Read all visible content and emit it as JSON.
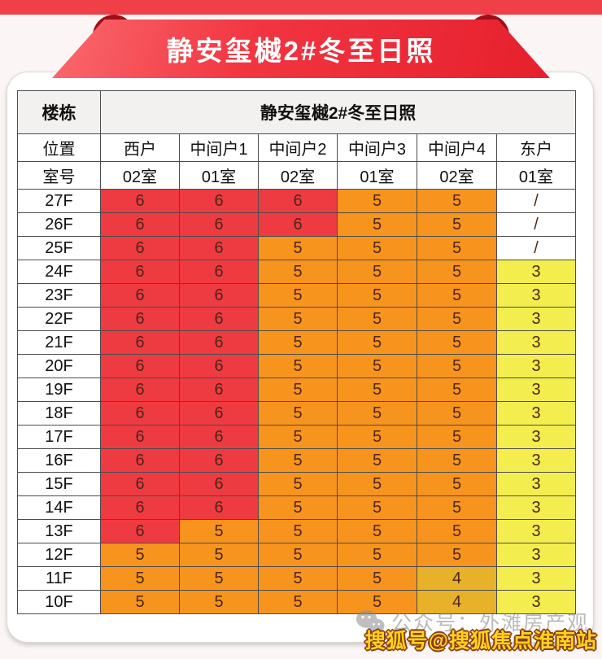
{
  "banner": {
    "title": "静安玺樾2#冬至日照"
  },
  "colors": {
    "red": "#ee3b41",
    "orange": "#f7941e",
    "amber": "#e8b12a",
    "yellow": "#f3ee4e",
    "white": "#ffffff",
    "banner_red": "#ee4046",
    "curl_dark_red": "#9c1016"
  },
  "table": {
    "corner_header": "楼栋",
    "span_header": "静安玺樾2#冬至日照",
    "position_label": "位置",
    "room_label": "室号",
    "positions": [
      "西户",
      "中间户1",
      "中间户2",
      "中间户3",
      "中间户4",
      "东户"
    ],
    "rooms": [
      "02室",
      "01室",
      "02室",
      "01室",
      "02室",
      "01室"
    ],
    "floors": [
      {
        "floor": "27F",
        "cells": [
          {
            "v": "6",
            "c": "red"
          },
          {
            "v": "6",
            "c": "red"
          },
          {
            "v": "6",
            "c": "red"
          },
          {
            "v": "5",
            "c": "orange"
          },
          {
            "v": "5",
            "c": "orange"
          },
          {
            "v": "/",
            "c": "white"
          }
        ]
      },
      {
        "floor": "26F",
        "cells": [
          {
            "v": "6",
            "c": "red"
          },
          {
            "v": "6",
            "c": "red"
          },
          {
            "v": "6",
            "c": "red"
          },
          {
            "v": "5",
            "c": "orange"
          },
          {
            "v": "5",
            "c": "orange"
          },
          {
            "v": "/",
            "c": "white"
          }
        ]
      },
      {
        "floor": "25F",
        "cells": [
          {
            "v": "6",
            "c": "red"
          },
          {
            "v": "6",
            "c": "red"
          },
          {
            "v": "5",
            "c": "orange"
          },
          {
            "v": "5",
            "c": "orange"
          },
          {
            "v": "5",
            "c": "orange"
          },
          {
            "v": "/",
            "c": "white"
          }
        ]
      },
      {
        "floor": "24F",
        "cells": [
          {
            "v": "6",
            "c": "red"
          },
          {
            "v": "6",
            "c": "red"
          },
          {
            "v": "5",
            "c": "orange"
          },
          {
            "v": "5",
            "c": "orange"
          },
          {
            "v": "5",
            "c": "orange"
          },
          {
            "v": "3",
            "c": "yellow"
          }
        ]
      },
      {
        "floor": "23F",
        "cells": [
          {
            "v": "6",
            "c": "red"
          },
          {
            "v": "6",
            "c": "red"
          },
          {
            "v": "5",
            "c": "orange"
          },
          {
            "v": "5",
            "c": "orange"
          },
          {
            "v": "5",
            "c": "orange"
          },
          {
            "v": "3",
            "c": "yellow"
          }
        ]
      },
      {
        "floor": "22F",
        "cells": [
          {
            "v": "6",
            "c": "red"
          },
          {
            "v": "6",
            "c": "red"
          },
          {
            "v": "5",
            "c": "orange"
          },
          {
            "v": "5",
            "c": "orange"
          },
          {
            "v": "5",
            "c": "orange"
          },
          {
            "v": "3",
            "c": "yellow"
          }
        ]
      },
      {
        "floor": "21F",
        "cells": [
          {
            "v": "6",
            "c": "red"
          },
          {
            "v": "6",
            "c": "red"
          },
          {
            "v": "5",
            "c": "orange"
          },
          {
            "v": "5",
            "c": "orange"
          },
          {
            "v": "5",
            "c": "orange"
          },
          {
            "v": "3",
            "c": "yellow"
          }
        ]
      },
      {
        "floor": "20F",
        "cells": [
          {
            "v": "6",
            "c": "red"
          },
          {
            "v": "6",
            "c": "red"
          },
          {
            "v": "5",
            "c": "orange"
          },
          {
            "v": "5",
            "c": "orange"
          },
          {
            "v": "5",
            "c": "orange"
          },
          {
            "v": "3",
            "c": "yellow"
          }
        ]
      },
      {
        "floor": "19F",
        "cells": [
          {
            "v": "6",
            "c": "red"
          },
          {
            "v": "6",
            "c": "red"
          },
          {
            "v": "5",
            "c": "orange"
          },
          {
            "v": "5",
            "c": "orange"
          },
          {
            "v": "5",
            "c": "orange"
          },
          {
            "v": "3",
            "c": "yellow"
          }
        ]
      },
      {
        "floor": "18F",
        "cells": [
          {
            "v": "6",
            "c": "red"
          },
          {
            "v": "6",
            "c": "red"
          },
          {
            "v": "5",
            "c": "orange"
          },
          {
            "v": "5",
            "c": "orange"
          },
          {
            "v": "5",
            "c": "orange"
          },
          {
            "v": "3",
            "c": "yellow"
          }
        ]
      },
      {
        "floor": "17F",
        "cells": [
          {
            "v": "6",
            "c": "red"
          },
          {
            "v": "6",
            "c": "red"
          },
          {
            "v": "5",
            "c": "orange"
          },
          {
            "v": "5",
            "c": "orange"
          },
          {
            "v": "5",
            "c": "orange"
          },
          {
            "v": "3",
            "c": "yellow"
          }
        ]
      },
      {
        "floor": "16F",
        "cells": [
          {
            "v": "6",
            "c": "red"
          },
          {
            "v": "6",
            "c": "red"
          },
          {
            "v": "5",
            "c": "orange"
          },
          {
            "v": "5",
            "c": "orange"
          },
          {
            "v": "5",
            "c": "orange"
          },
          {
            "v": "3",
            "c": "yellow"
          }
        ]
      },
      {
        "floor": "15F",
        "cells": [
          {
            "v": "6",
            "c": "red"
          },
          {
            "v": "6",
            "c": "red"
          },
          {
            "v": "5",
            "c": "orange"
          },
          {
            "v": "5",
            "c": "orange"
          },
          {
            "v": "5",
            "c": "orange"
          },
          {
            "v": "3",
            "c": "yellow"
          }
        ]
      },
      {
        "floor": "14F",
        "cells": [
          {
            "v": "6",
            "c": "red"
          },
          {
            "v": "6",
            "c": "red"
          },
          {
            "v": "5",
            "c": "orange"
          },
          {
            "v": "5",
            "c": "orange"
          },
          {
            "v": "5",
            "c": "orange"
          },
          {
            "v": "3",
            "c": "yellow"
          }
        ]
      },
      {
        "floor": "13F",
        "cells": [
          {
            "v": "6",
            "c": "red"
          },
          {
            "v": "5",
            "c": "orange"
          },
          {
            "v": "5",
            "c": "orange"
          },
          {
            "v": "5",
            "c": "orange"
          },
          {
            "v": "5",
            "c": "orange"
          },
          {
            "v": "3",
            "c": "yellow"
          }
        ]
      },
      {
        "floor": "12F",
        "cells": [
          {
            "v": "5",
            "c": "orange"
          },
          {
            "v": "5",
            "c": "orange"
          },
          {
            "v": "5",
            "c": "orange"
          },
          {
            "v": "5",
            "c": "orange"
          },
          {
            "v": "5",
            "c": "orange"
          },
          {
            "v": "3",
            "c": "yellow"
          }
        ]
      },
      {
        "floor": "11F",
        "cells": [
          {
            "v": "5",
            "c": "orange"
          },
          {
            "v": "5",
            "c": "orange"
          },
          {
            "v": "5",
            "c": "orange"
          },
          {
            "v": "5",
            "c": "orange"
          },
          {
            "v": "4",
            "c": "amber"
          },
          {
            "v": "3",
            "c": "yellow"
          }
        ]
      },
      {
        "floor": "10F",
        "cells": [
          {
            "v": "5",
            "c": "orange"
          },
          {
            "v": "5",
            "c": "orange"
          },
          {
            "v": "5",
            "c": "orange"
          },
          {
            "v": "5",
            "c": "orange"
          },
          {
            "v": "4",
            "c": "amber"
          },
          {
            "v": "3",
            "c": "yellow"
          }
        ]
      }
    ]
  },
  "watermarks": {
    "wechat_icon": "wechat-icon",
    "wechat_label": "公众号：外滩房产观",
    "sohu_label": "搜狐号@搜狐焦点淮南站"
  }
}
